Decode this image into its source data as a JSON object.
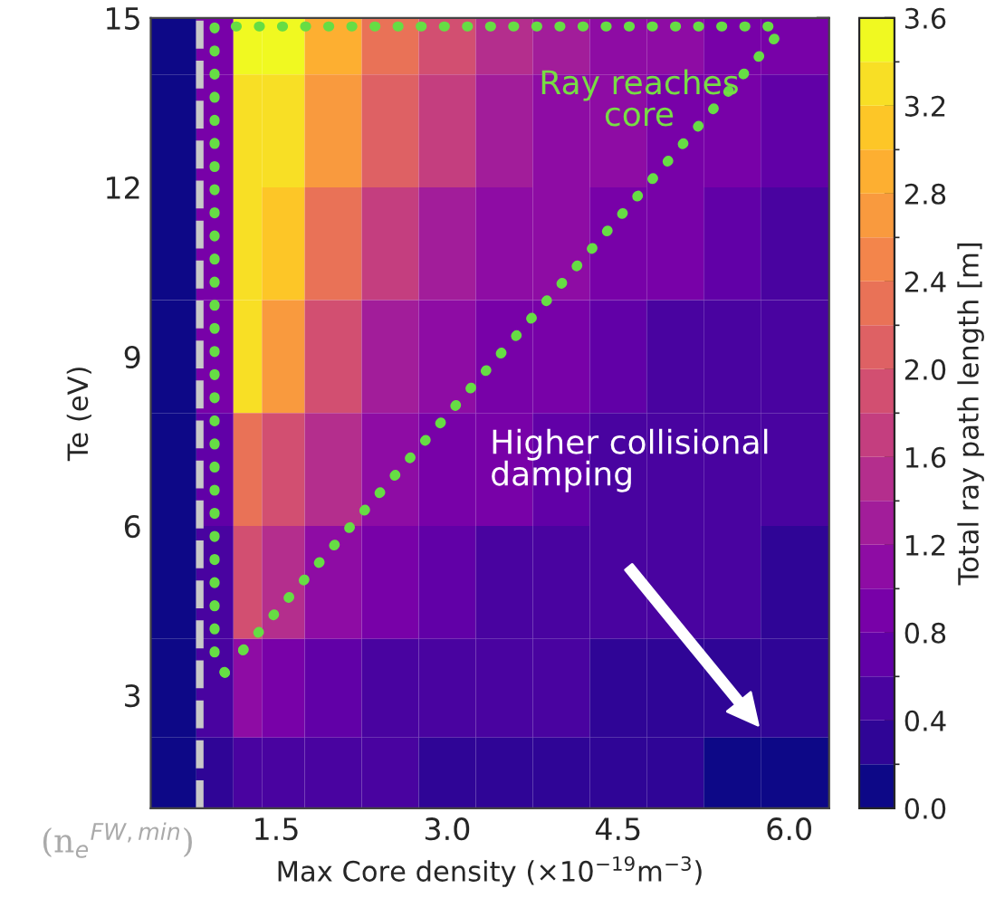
{
  "chart_data": {
    "type": "heatmap",
    "xlabel": "Max Core density (×10$^{−19}$m$^{−3}$)",
    "ylabel": "Te (eV)",
    "clabel": "Total ray path length [m]",
    "x": [
      0.6,
      1.0,
      1.25,
      1.5,
      2.0,
      2.5,
      3.0,
      3.5,
      4.0,
      4.5,
      5.0,
      5.5,
      6.0
    ],
    "y": [
      15,
      13,
      11,
      9,
      7,
      5,
      3,
      1.5
    ],
    "cells": [
      [
        0.1,
        0.9,
        3.5,
        3.5,
        2.9,
        2.3,
        1.8,
        1.5,
        1.3,
        1.1,
        1.0,
        0.9,
        0.8
      ],
      [
        0.1,
        0.9,
        3.4,
        3.3,
        2.6,
        2.0,
        1.6,
        1.3,
        1.1,
        1.0,
        0.9,
        0.8,
        0.7
      ],
      [
        0.1,
        0.9,
        3.3,
        3.0,
        2.3,
        1.7,
        1.4,
        1.1,
        1.0,
        0.9,
        0.8,
        0.7,
        0.6
      ],
      [
        0.1,
        0.8,
        3.2,
        2.6,
        1.9,
        1.4,
        1.1,
        0.9,
        0.8,
        0.7,
        0.6,
        0.6,
        0.5
      ],
      [
        0.1,
        0.7,
        2.3,
        1.9,
        1.5,
        1.1,
        0.9,
        0.8,
        0.7,
        0.6,
        0.5,
        0.5,
        0.4
      ],
      [
        0.1,
        0.6,
        1.9,
        1.5,
        1.1,
        0.9,
        0.7,
        0.6,
        0.5,
        0.5,
        0.4,
        0.4,
        0.3
      ],
      [
        0.1,
        0.5,
        1.2,
        0.9,
        0.7,
        0.6,
        0.5,
        0.4,
        0.4,
        0.3,
        0.3,
        0.2,
        0.2
      ],
      [
        0.1,
        0.3,
        0.6,
        0.5,
        0.4,
        0.4,
        0.3,
        0.3,
        0.2,
        0.2,
        0.2,
        0.1,
        0.1
      ]
    ],
    "clim": [
      0,
      3.6
    ],
    "cticks": [
      {
        "value": 0,
        "label": "0.0"
      },
      {
        "value": 0.4,
        "label": "0.4"
      },
      {
        "value": 0.8,
        "label": "0.8"
      },
      {
        "value": 1.2,
        "label": "1.2"
      },
      {
        "value": 1.6,
        "label": "1.6"
      },
      {
        "value": 2.0,
        "label": "2.0"
      },
      {
        "value": 2.4,
        "label": "2.4"
      },
      {
        "value": 2.8,
        "label": "2.8"
      },
      {
        "value": 3.2,
        "label": "3.2"
      },
      {
        "value": 3.6,
        "label": "3.6"
      }
    ],
    "xlim": [
      0.4,
      6.35
    ],
    "ylim": [
      1,
      15
    ],
    "xticks": [
      {
        "value": 1.5,
        "label": "1.5"
      },
      {
        "value": 3.0,
        "label": "3.0"
      },
      {
        "value": 4.5,
        "label": "4.5"
      },
      {
        "value": 6.0,
        "label": "6.0"
      }
    ],
    "yticks": [
      3,
      6,
      9,
      12,
      15
    ],
    "series": [
      {
        "type": "line",
        "color": "#66dd44",
        "line_style": "dotted",
        "x": [
          1.05,
          0.96,
          0.96,
          5.85,
          5.92,
          1.21
        ],
        "values": [
          3.4,
          3.7,
          14.85,
          14.85,
          14.75,
          3.8
        ]
      }
    ],
    "ref_lines": [
      {
        "axis": "x",
        "value": 0.83,
        "label": "(n$_{e}$$^{FW,min}$)",
        "color": "#c8c8c8",
        "line_style": "dashed"
      }
    ],
    "annotations": [
      "Ray reaches\ncore",
      "Higher collisional\ndamping"
    ],
    "grid": false,
    "legend": false
  }
}
